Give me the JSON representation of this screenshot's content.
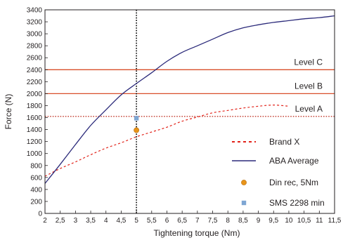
{
  "chart_data": {
    "type": "line",
    "xlabel": "Tightening torque (Nm)",
    "ylabel": "Force (N)",
    "xlim": [
      2,
      11.5
    ],
    "ylim": [
      0,
      3400
    ],
    "x_ticks": [
      2,
      2.5,
      3,
      3.5,
      4,
      4.5,
      5,
      5.5,
      6,
      6.5,
      7,
      7.5,
      8,
      8.5,
      9,
      9.5,
      10,
      10.5,
      11,
      11.5
    ],
    "x_tick_labels": [
      "2",
      "2,5",
      "3",
      "3,5",
      "4",
      "4,5",
      "5",
      "5,5",
      "6",
      "6,5",
      "7",
      "7,5",
      "8",
      "8,5",
      "9",
      "9,5",
      "10",
      "10,5",
      "11",
      "11,5"
    ],
    "y_ticks": [
      0,
      200,
      400,
      600,
      800,
      1000,
      1200,
      1400,
      1600,
      1800,
      2000,
      2200,
      2400,
      2600,
      2800,
      3000,
      3200,
      3400
    ],
    "y_tick_labels": [
      "0",
      "200",
      "400",
      "600",
      "800",
      "1000",
      "1200",
      "1400",
      "1600",
      "1800",
      "2000",
      "2200",
      "2400",
      "2600",
      "2800",
      "3000",
      "3200",
      "3400"
    ],
    "grid": false,
    "legend_position": "lower-right",
    "series": [
      {
        "name": "Brand X",
        "style": "dashed",
        "color": "#e2231a",
        "x": [
          2,
          2.5,
          3,
          3.5,
          4,
          4.5,
          5,
          5.5,
          6,
          6.5,
          7,
          7.5,
          8,
          8.5,
          9,
          9.5,
          10
        ],
        "y": [
          620,
          750,
          860,
          980,
          1090,
          1180,
          1280,
          1360,
          1440,
          1540,
          1610,
          1680,
          1720,
          1760,
          1790,
          1810,
          1790
        ]
      },
      {
        "name": "ABA Average",
        "style": "solid",
        "color": "#2b2a7a",
        "x": [
          2,
          2.5,
          3,
          3.5,
          4,
          4.5,
          5,
          5.5,
          6,
          6.5,
          7,
          7.5,
          8,
          8.5,
          9,
          9.5,
          10,
          10.5,
          11,
          11.5
        ],
        "y": [
          500,
          820,
          1150,
          1470,
          1730,
          1980,
          2170,
          2350,
          2540,
          2690,
          2800,
          2910,
          3020,
          3100,
          3150,
          3190,
          3220,
          3250,
          3270,
          3300
        ]
      },
      {
        "name": "Din rec, 5Nm",
        "style": "marker",
        "marker": "circle",
        "color": "#e8941a",
        "x": [
          5
        ],
        "y": [
          1390
        ]
      },
      {
        "name": "SMS 2298 min",
        "style": "marker",
        "marker": "square",
        "color": "#7ea6d3",
        "x": [
          5
        ],
        "y": [
          1590
        ]
      }
    ],
    "reference_lines": [
      {
        "label": "Level C",
        "axis": "y",
        "value": 2400,
        "style": "solid",
        "color": "#d94f2a"
      },
      {
        "label": "Level B",
        "axis": "y",
        "value": 2000,
        "style": "solid",
        "color": "#d94f2a"
      },
      {
        "label": "Level A",
        "axis": "y",
        "value": 1620,
        "style": "dotted",
        "color": "#c0392b"
      },
      {
        "label": "",
        "axis": "x",
        "value": 5,
        "style": "dotted",
        "color": "#000000"
      }
    ]
  }
}
